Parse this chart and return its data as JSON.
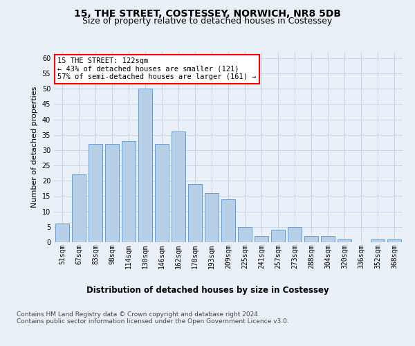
{
  "title_line1": "15, THE STREET, COSTESSEY, NORWICH, NR8 5DB",
  "title_line2": "Size of property relative to detached houses in Costessey",
  "xlabel": "Distribution of detached houses by size in Costessey",
  "ylabel": "Number of detached properties",
  "bar_labels": [
    "51sqm",
    "67sqm",
    "83sqm",
    "98sqm",
    "114sqm",
    "130sqm",
    "146sqm",
    "162sqm",
    "178sqm",
    "193sqm",
    "209sqm",
    "225sqm",
    "241sqm",
    "257sqm",
    "273sqm",
    "288sqm",
    "304sqm",
    "320sqm",
    "336sqm",
    "352sqm",
    "368sqm"
  ],
  "bar_values": [
    6,
    22,
    32,
    32,
    33,
    50,
    32,
    36,
    19,
    16,
    14,
    5,
    2,
    4,
    5,
    2,
    2,
    1,
    0,
    1,
    1
  ],
  "bar_color": "#b8cfe8",
  "bar_edge_color": "#6090c0",
  "annotation_text": "15 THE STREET: 122sqm\n← 43% of detached houses are smaller (121)\n57% of semi-detached houses are larger (161) →",
  "annotation_box_color": "white",
  "annotation_box_edge_color": "red",
  "ylim": [
    0,
    62
  ],
  "yticks": [
    0,
    5,
    10,
    15,
    20,
    25,
    30,
    35,
    40,
    45,
    50,
    55,
    60
  ],
  "grid_color": "#c8d4e4",
  "background_color": "#eaf0f8",
  "footer_text": "Contains HM Land Registry data © Crown copyright and database right 2024.\nContains public sector information licensed under the Open Government Licence v3.0.",
  "title_fontsize": 10,
  "subtitle_fontsize": 9,
  "xlabel_fontsize": 8.5,
  "ylabel_fontsize": 8,
  "tick_fontsize": 7,
  "annotation_fontsize": 7.5,
  "footer_fontsize": 6.5
}
